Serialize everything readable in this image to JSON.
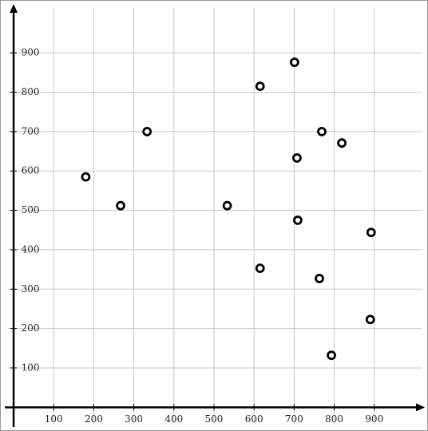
{
  "chart_data": {
    "type": "scatter",
    "x": [
      180,
      267,
      333,
      533,
      615,
      701,
      769,
      819,
      707,
      709,
      892,
      615,
      763,
      890,
      793
    ],
    "values": [
      585,
      512,
      700,
      512,
      815,
      876,
      700,
      671,
      633,
      475,
      444,
      353,
      327,
      223,
      132
    ],
    "color": "#000000",
    "xlim": [
      -22,
      1026
    ],
    "ylim": [
      -50,
      1024
    ],
    "xticks": [
      100,
      200,
      300,
      400,
      500,
      600,
      700,
      800,
      900
    ],
    "yticks": [
      100,
      200,
      300,
      400,
      500,
      600,
      700,
      800,
      900
    ],
    "grid": true
  }
}
